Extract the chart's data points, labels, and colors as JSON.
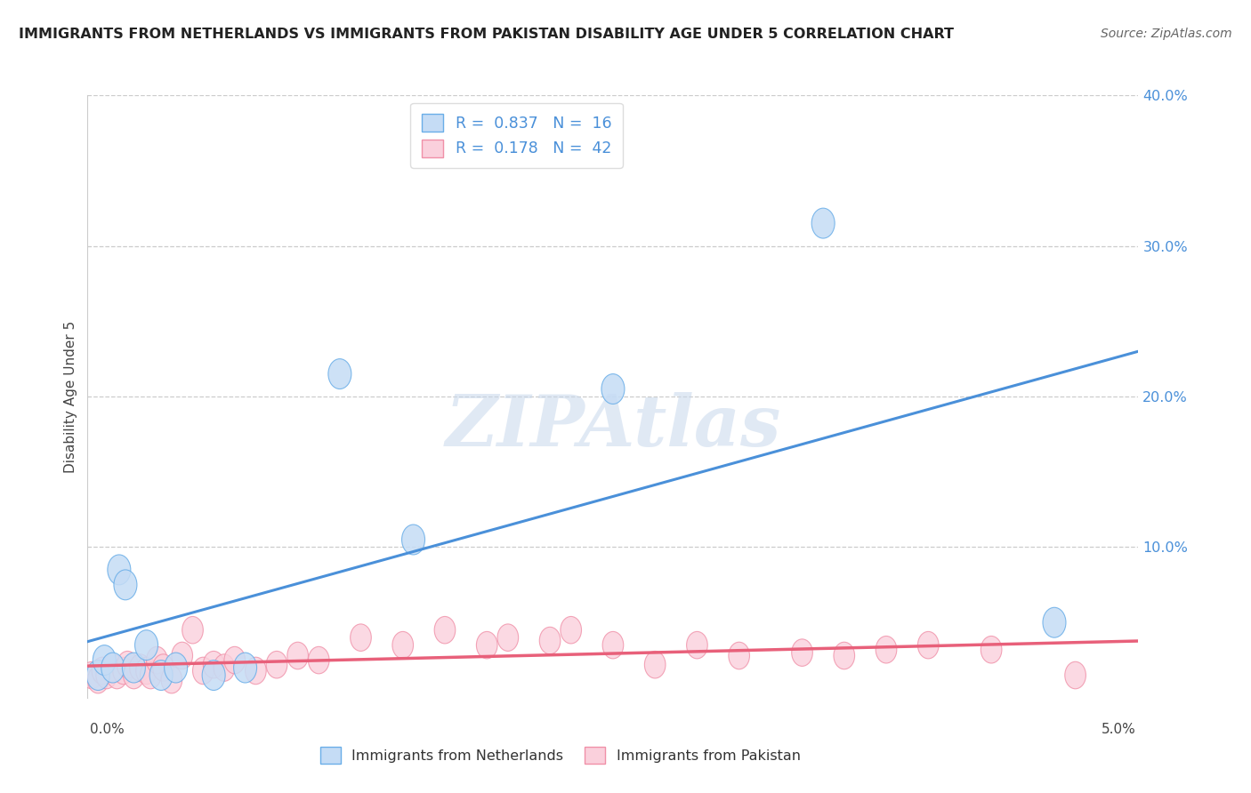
{
  "title": "IMMIGRANTS FROM NETHERLANDS VS IMMIGRANTS FROM PAKISTAN DISABILITY AGE UNDER 5 CORRELATION CHART",
  "source": "Source: ZipAtlas.com",
  "ylabel": "Disability Age Under 5",
  "xlim": [
    0.0,
    5.0
  ],
  "ylim": [
    0.0,
    40.0
  ],
  "netherlands": {
    "R": 0.837,
    "N": 16,
    "color": "#C5DCF5",
    "edge_color": "#6AAEE8",
    "line_color": "#4A90D9",
    "scatter_x": [
      0.05,
      0.08,
      0.12,
      0.15,
      0.18,
      0.22,
      0.28,
      0.35,
      0.42,
      0.6,
      0.75,
      1.2,
      1.55,
      2.5,
      3.5,
      4.6
    ],
    "scatter_y": [
      1.5,
      2.5,
      2.0,
      8.5,
      7.5,
      2.0,
      3.5,
      1.5,
      2.0,
      1.5,
      2.0,
      21.5,
      10.5,
      20.5,
      31.5,
      5.0
    ]
  },
  "pakistan": {
    "R": 0.178,
    "N": 42,
    "color": "#FAD0DC",
    "edge_color": "#F090A8",
    "line_color": "#E8607A",
    "scatter_x": [
      0.02,
      0.05,
      0.07,
      0.09,
      0.12,
      0.14,
      0.17,
      0.19,
      0.22,
      0.25,
      0.28,
      0.3,
      0.33,
      0.36,
      0.4,
      0.45,
      0.5,
      0.55,
      0.6,
      0.65,
      0.7,
      0.8,
      0.9,
      1.0,
      1.1,
      1.3,
      1.5,
      1.7,
      1.9,
      2.0,
      2.2,
      2.3,
      2.5,
      2.7,
      2.9,
      3.1,
      3.4,
      3.6,
      3.8,
      4.0,
      4.3,
      4.7
    ],
    "scatter_y": [
      1.5,
      1.2,
      1.8,
      1.5,
      2.0,
      1.5,
      1.8,
      2.2,
      1.5,
      2.0,
      1.8,
      1.5,
      2.5,
      2.0,
      1.2,
      2.8,
      4.5,
      1.8,
      2.2,
      2.0,
      2.5,
      1.8,
      2.2,
      2.8,
      2.5,
      4.0,
      3.5,
      4.5,
      3.5,
      4.0,
      3.8,
      4.5,
      3.5,
      2.2,
      3.5,
      2.8,
      3.0,
      2.8,
      3.2,
      3.5,
      3.2,
      1.5
    ]
  },
  "legend_labels": [
    "Immigrants from Netherlands",
    "Immigrants from Pakistan"
  ],
  "background_color": "#ffffff",
  "grid_color": "#cccccc"
}
